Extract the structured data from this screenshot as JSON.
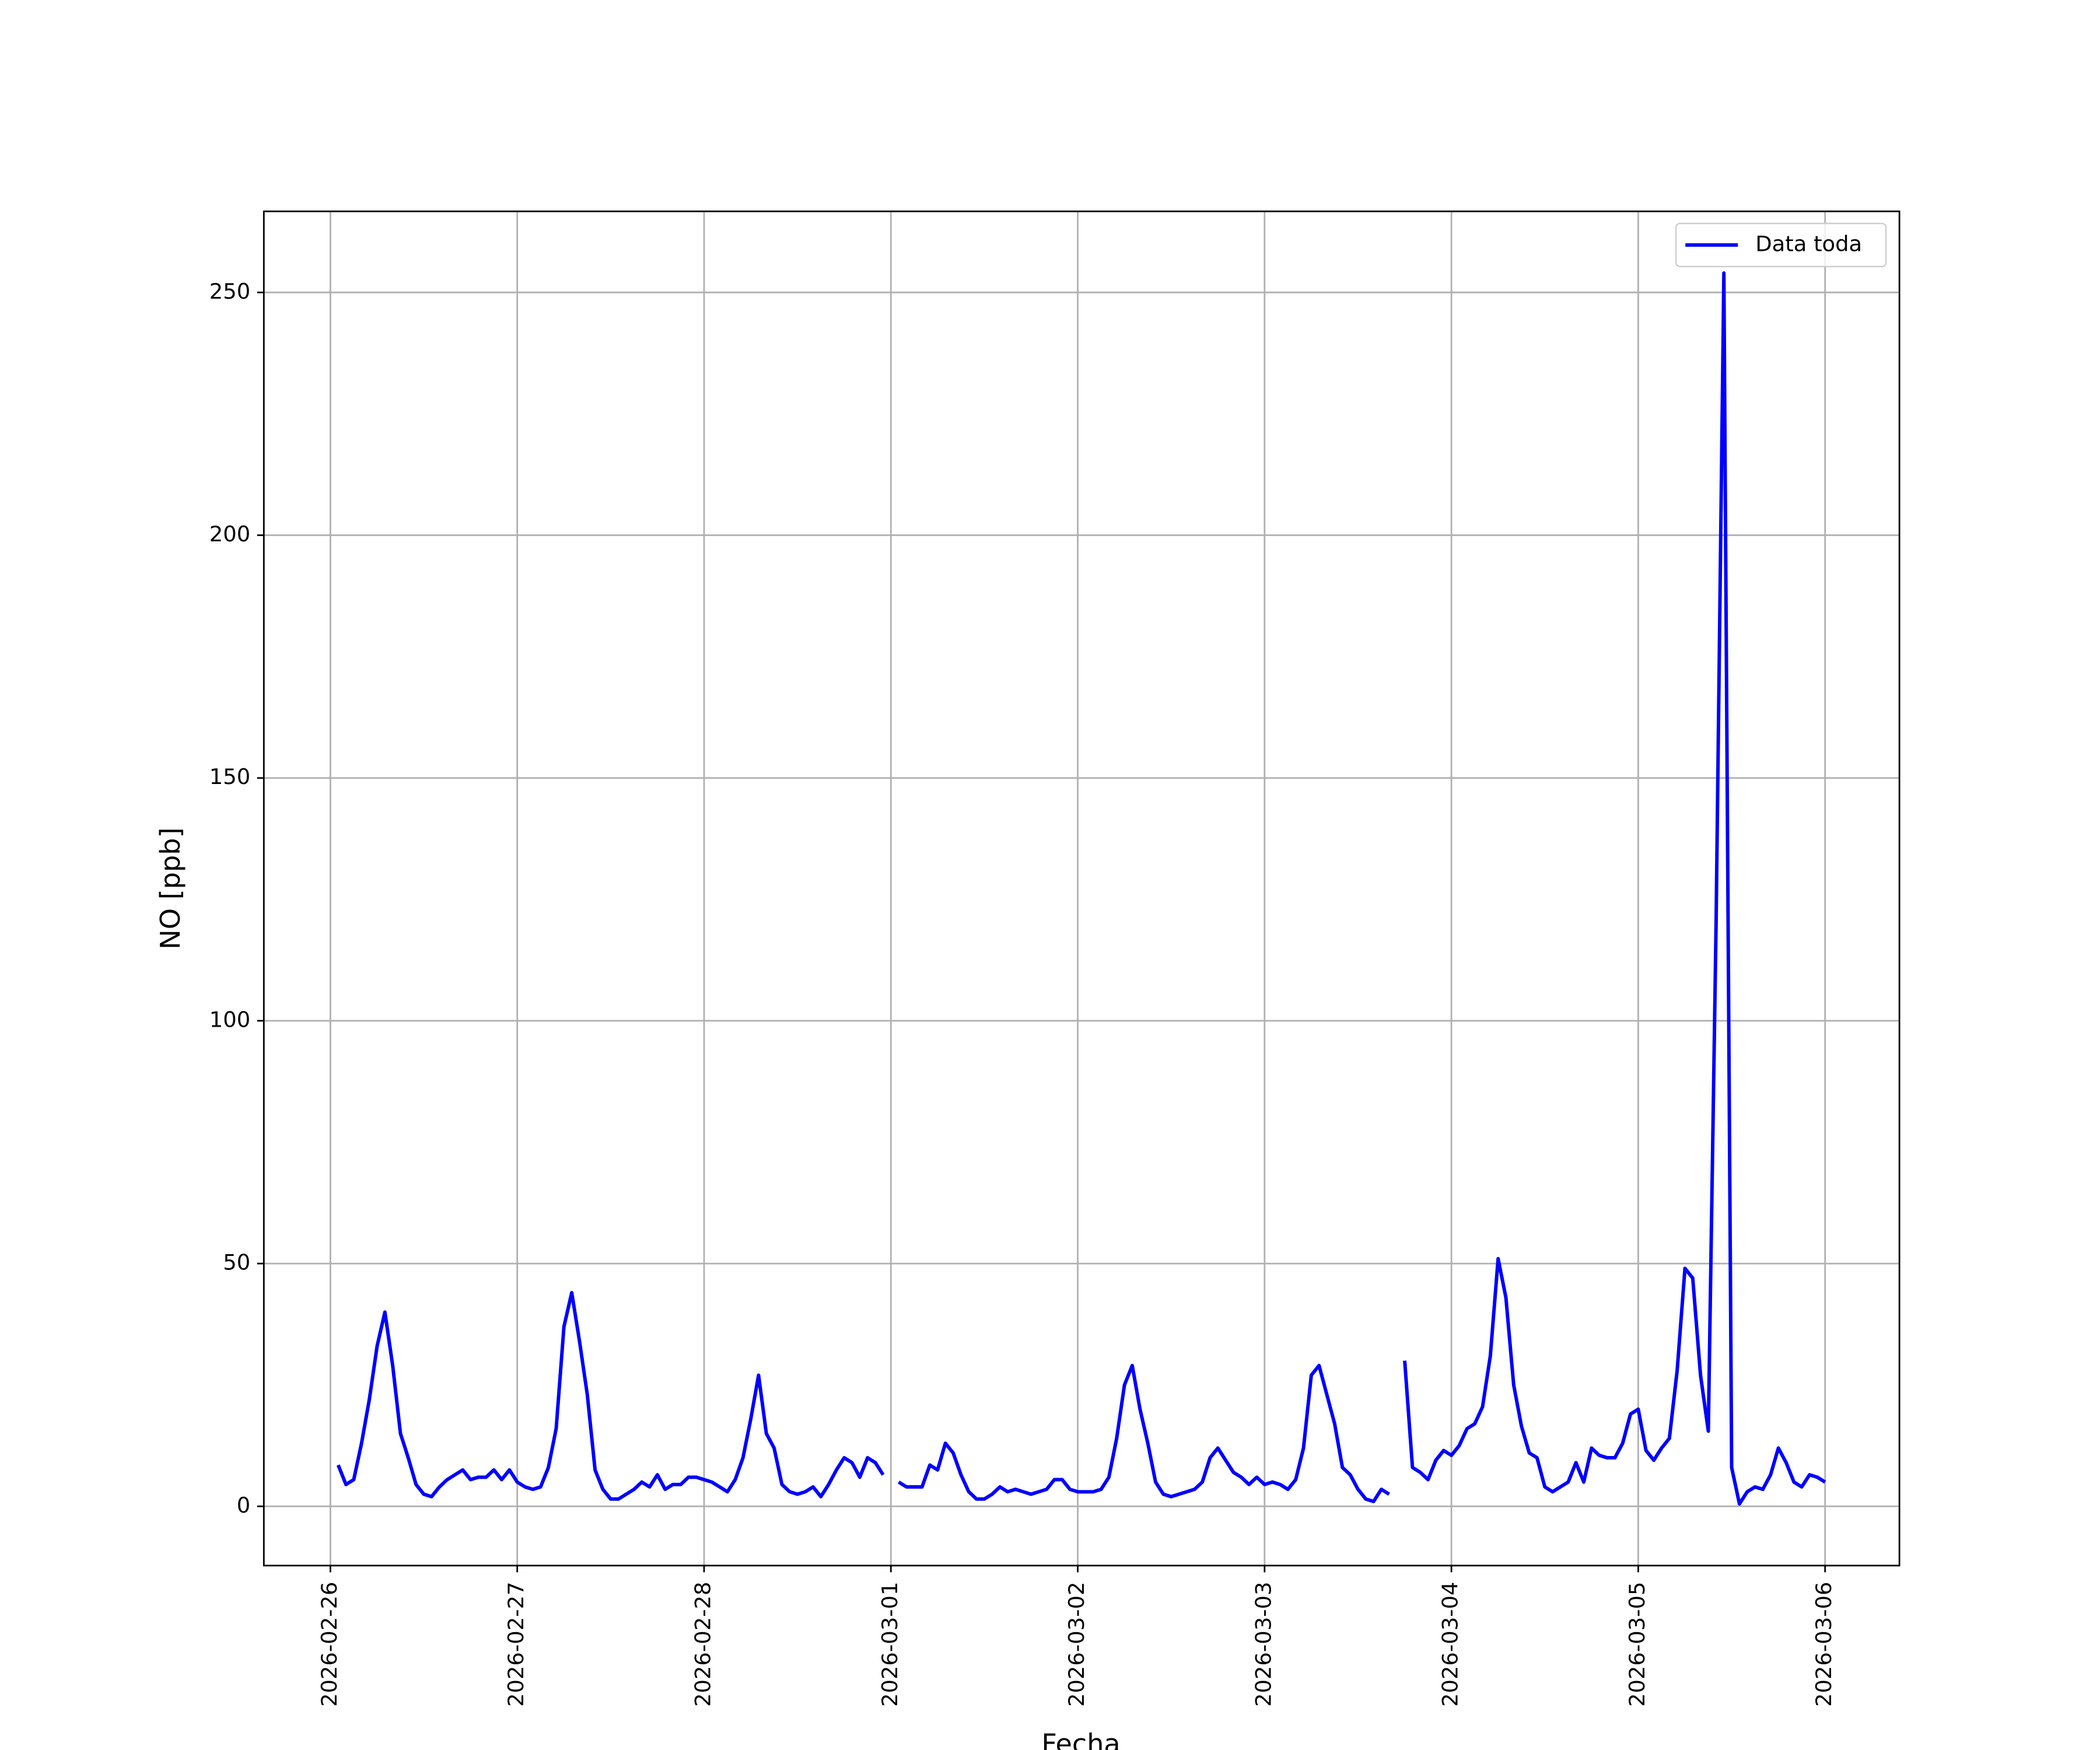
{
  "chart_data": {
    "type": "line",
    "x_label": "Fecha",
    "y_label": "NO [ppb]",
    "x": [
      "2026-02-26 01:00",
      "2026-02-26 02:00",
      "2026-02-26 03:00",
      "2026-02-26 04:00",
      "2026-02-26 05:00",
      "2026-02-26 06:00",
      "2026-02-26 07:00",
      "2026-02-26 08:00",
      "2026-02-26 09:00",
      "2026-02-26 10:00",
      "2026-02-26 11:00",
      "2026-02-26 12:00",
      "2026-02-26 13:00",
      "2026-02-26 14:00",
      "2026-02-26 15:00",
      "2026-02-26 16:00",
      "2026-02-26 17:00",
      "2026-02-26 18:00",
      "2026-02-26 19:00",
      "2026-02-26 20:00",
      "2026-02-26 21:00",
      "2026-02-26 22:00",
      "2026-02-26 23:00",
      "2026-02-27 00:00",
      "2026-02-27 01:00",
      "2026-02-27 02:00",
      "2026-02-27 03:00",
      "2026-02-27 04:00",
      "2026-02-27 05:00",
      "2026-02-27 06:00",
      "2026-02-27 07:00",
      "2026-02-27 08:00",
      "2026-02-27 09:00",
      "2026-02-27 10:00",
      "2026-02-27 11:00",
      "2026-02-27 12:00",
      "2026-02-27 13:00",
      "2026-02-27 14:00",
      "2026-02-27 15:00",
      "2026-02-27 16:00",
      "2026-02-27 17:00",
      "2026-02-27 18:00",
      "2026-02-27 19:00",
      "2026-02-27 20:00",
      "2026-02-27 21:00",
      "2026-02-27 22:00",
      "2026-02-27 23:00",
      "2026-02-28 00:00",
      "2026-02-28 01:00",
      "2026-02-28 02:00",
      "2026-02-28 03:00",
      "2026-02-28 04:00",
      "2026-02-28 05:00",
      "2026-02-28 06:00",
      "2026-02-28 07:00",
      "2026-02-28 08:00",
      "2026-02-28 09:00",
      "2026-02-28 10:00",
      "2026-02-28 11:00",
      "2026-02-28 12:00",
      "2026-02-28 13:00",
      "2026-02-28 14:00",
      "2026-02-28 15:00",
      "2026-02-28 16:00",
      "2026-02-28 17:00",
      "2026-02-28 18:00",
      "2026-02-28 19:00",
      "2026-02-28 20:00",
      "2026-02-28 21:00",
      "2026-02-28 22:00",
      "2026-02-28 23:00",
      "2026-03-01 00:00",
      "2026-03-01 01:00",
      "2026-03-01 02:00",
      "2026-03-01 03:00",
      "2026-03-01 04:00",
      "2026-03-01 05:00",
      "2026-03-01 06:00",
      "2026-03-01 07:00",
      "2026-03-01 08:00",
      "2026-03-01 09:00",
      "2026-03-01 10:00",
      "2026-03-01 11:00",
      "2026-03-01 12:00",
      "2026-03-01 13:00",
      "2026-03-01 14:00",
      "2026-03-01 15:00",
      "2026-03-01 16:00",
      "2026-03-01 17:00",
      "2026-03-01 18:00",
      "2026-03-01 19:00",
      "2026-03-01 20:00",
      "2026-03-01 21:00",
      "2026-03-01 22:00",
      "2026-03-01 23:00",
      "2026-03-02 00:00",
      "2026-03-02 01:00",
      "2026-03-02 02:00",
      "2026-03-02 03:00",
      "2026-03-02 04:00",
      "2026-03-02 05:00",
      "2026-03-02 06:00",
      "2026-03-02 07:00",
      "2026-03-02 08:00",
      "2026-03-02 09:00",
      "2026-03-02 10:00",
      "2026-03-02 11:00",
      "2026-03-02 12:00",
      "2026-03-02 13:00",
      "2026-03-02 14:00",
      "2026-03-02 15:00",
      "2026-03-02 16:00",
      "2026-03-02 17:00",
      "2026-03-02 18:00",
      "2026-03-02 19:00",
      "2026-03-02 20:00",
      "2026-03-02 21:00",
      "2026-03-02 22:00",
      "2026-03-02 23:00",
      "2026-03-03 00:00",
      "2026-03-03 01:00",
      "2026-03-03 02:00",
      "2026-03-03 03:00",
      "2026-03-03 04:00",
      "2026-03-03 05:00",
      "2026-03-03 06:00",
      "2026-03-03 07:00",
      "2026-03-03 08:00",
      "2026-03-03 09:00",
      "2026-03-03 10:00",
      "2026-03-03 11:00",
      "2026-03-03 12:00",
      "2026-03-03 13:00",
      "2026-03-03 14:00",
      "2026-03-03 15:00",
      "2026-03-03 16:00",
      "2026-03-03 17:00",
      "2026-03-03 18:00",
      "2026-03-03 19:00",
      "2026-03-03 20:00",
      "2026-03-03 21:00",
      "2026-03-03 22:00",
      "2026-03-03 23:00",
      "2026-03-04 00:00",
      "2026-03-04 01:00",
      "2026-03-04 02:00",
      "2026-03-04 03:00",
      "2026-03-04 04:00",
      "2026-03-04 05:00",
      "2026-03-04 06:00",
      "2026-03-04 07:00",
      "2026-03-04 08:00",
      "2026-03-04 09:00",
      "2026-03-04 10:00",
      "2026-03-04 11:00",
      "2026-03-04 12:00",
      "2026-03-04 13:00",
      "2026-03-04 14:00",
      "2026-03-04 15:00",
      "2026-03-04 16:00",
      "2026-03-04 17:00",
      "2026-03-04 18:00",
      "2026-03-04 19:00",
      "2026-03-04 20:00",
      "2026-03-04 21:00",
      "2026-03-04 22:00",
      "2026-03-04 23:00",
      "2026-03-05 00:00",
      "2026-03-05 01:00",
      "2026-03-05 02:00",
      "2026-03-05 03:00",
      "2026-03-05 04:00",
      "2026-03-05 05:00",
      "2026-03-05 06:00",
      "2026-03-05 07:00",
      "2026-03-05 08:00",
      "2026-03-05 09:00",
      "2026-03-05 10:00",
      "2026-03-05 11:00",
      "2026-03-05 12:00",
      "2026-03-05 13:00",
      "2026-03-05 14:00",
      "2026-03-05 15:00",
      "2026-03-05 16:00",
      "2026-03-05 17:00",
      "2026-03-05 18:00",
      "2026-03-05 19:00",
      "2026-03-05 20:00",
      "2026-03-05 21:00",
      "2026-03-05 22:00",
      "2026-03-05 23:00",
      "2026-03-06 00:00"
    ],
    "series": [
      {
        "name": "Data toda",
        "color": "#0000ff",
        "values": [
          8.5,
          4.5,
          5.5,
          13,
          22,
          33,
          40,
          29,
          15,
          10,
          4.5,
          2.5,
          2,
          4,
          5.5,
          6.5,
          7.5,
          5.5,
          6,
          6,
          7.5,
          5.5,
          7.5,
          5,
          4,
          3.5,
          4,
          8,
          16,
          37,
          44,
          34,
          23,
          7.5,
          3.5,
          1.5,
          1.5,
          2.5,
          3.5,
          5,
          4,
          6.5,
          3.5,
          4.5,
          4.5,
          6,
          6,
          5.5,
          5,
          4,
          3,
          5.5,
          10,
          18,
          27,
          15,
          12,
          4.5,
          3,
          2.5,
          3,
          4,
          2,
          4.5,
          7.5,
          10,
          9,
          6,
          10,
          9,
          6.5,
          null,
          5,
          4,
          4,
          4,
          8.5,
          7.5,
          13,
          11,
          6.5,
          3,
          1.5,
          1.5,
          2.5,
          4,
          3,
          3.5,
          3,
          2.5,
          3,
          3.5,
          5.5,
          5.5,
          3.5,
          3,
          3,
          3,
          3.5,
          6,
          14,
          25,
          29,
          20,
          13,
          5,
          2.5,
          2,
          2.5,
          3,
          3.5,
          5,
          10,
          12,
          9.5,
          7,
          6,
          4.5,
          6,
          4.5,
          5,
          4.5,
          3.5,
          5.5,
          12,
          27,
          29,
          23,
          17,
          8,
          6.5,
          3.5,
          1.5,
          1,
          3.5,
          2.5,
          null,
          30,
          8,
          7,
          5.5,
          9.5,
          11.5,
          10.5,
          12.5,
          16,
          17,
          20.5,
          31,
          51,
          43,
          25,
          16.5,
          11,
          10,
          4,
          3,
          4,
          5,
          9,
          5,
          12,
          10.5,
          10,
          10,
          13,
          19,
          20,
          11.5,
          9.5,
          12,
          14,
          28,
          49,
          47,
          27,
          15.5,
          120,
          254,
          8,
          0.5,
          3,
          4,
          3.5,
          6.5,
          12,
          9,
          5,
          4,
          6.5,
          6,
          5
        ]
      }
    ],
    "xlim": [
      "2026-02-25 15:27",
      "2026-03-06 09:33"
    ],
    "xticks": [
      "2026-02-26",
      "2026-02-27",
      "2026-02-28",
      "2026-03-01",
      "2026-03-02",
      "2026-03-03",
      "2026-03-04",
      "2026-03-05",
      "2026-03-06"
    ],
    "ylim": [
      -12.2,
      266.7
    ],
    "yticks": [
      0,
      50,
      100,
      150,
      200,
      250
    ],
    "grid": true,
    "legend": "upper right"
  }
}
